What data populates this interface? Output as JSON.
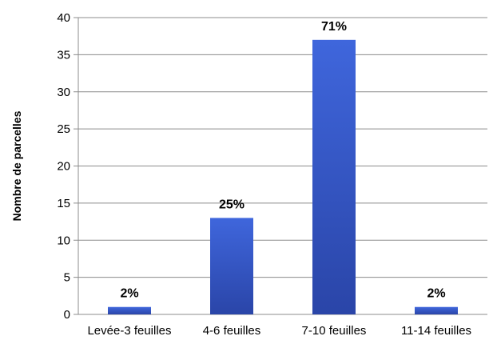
{
  "chart_data": {
    "type": "bar",
    "title": "",
    "xlabel": "",
    "ylabel": "Nombre de parcelles",
    "categories": [
      "Levée-3 feuilles",
      "4-6 feuilles",
      "7-10 feuilles",
      "11-14 feuilles"
    ],
    "values": [
      1,
      13,
      37,
      1
    ],
    "data_labels": [
      "2%",
      "25%",
      "71%",
      "2%"
    ],
    "ylim": [
      0,
      40
    ],
    "yticks": [
      "0",
      "5",
      "10",
      "15",
      "20",
      "25",
      "30",
      "35",
      "40"
    ],
    "grid": true,
    "legend": "none",
    "colors": {
      "bar_top": "#3f66dc",
      "bar_bottom": "#2a45a8",
      "grid": "#8c8c8c",
      "axis": "#8c8c8c"
    }
  }
}
